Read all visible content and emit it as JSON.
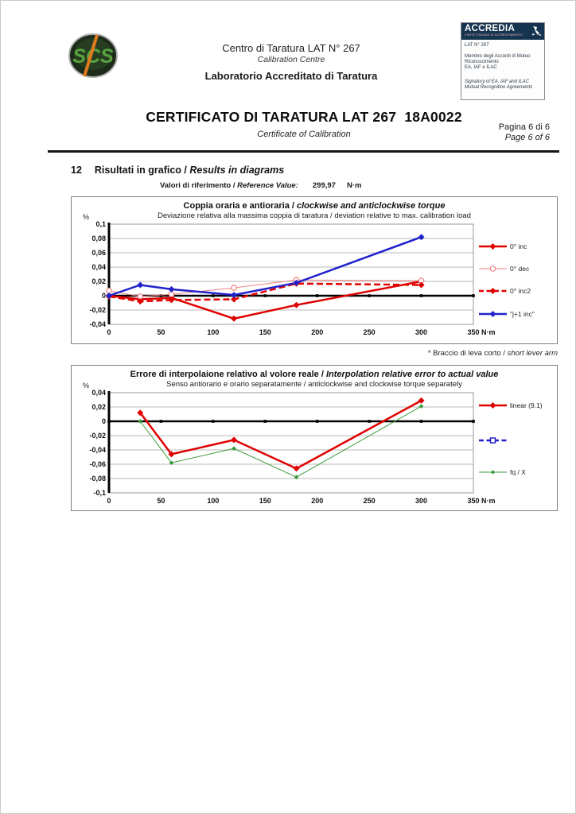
{
  "header": {
    "logo_text": "SCS",
    "center": {
      "line1": "Centro di Taratura LAT N° 267",
      "line2": "Calibration Centre",
      "line3": "Laboratorio Accreditato di Taratura"
    },
    "accredia": {
      "brand": "ACCREDIA",
      "brand_sub": "L'ENTE ITALIANO DI ACCREDITAMENTO",
      "lines": [
        "LAT N° 267",
        "Membro degli Accordi di Mutuo",
        "Riconoscimento",
        "EA, IAF e ILAC",
        "Signatory of EA, IAF and ILAC",
        "Mutual Recognition Agreements"
      ]
    }
  },
  "title_block": {
    "title": "CERTIFICATO DI TARATURA LAT 267  18A0022",
    "subtitle": "Certificate of Calibration",
    "page_it": "Pagina 6 di 6",
    "page_en": "Page 6 of 6"
  },
  "section": {
    "number": "12",
    "heading_it": "Risultati in grafico / ",
    "heading_en": "Results in diagrams",
    "ref_label_it": "Valori di riferimento / ",
    "ref_label_en": "Reference Value:",
    "ref_value": "299,97",
    "ref_unit": "N·m"
  },
  "footnote": {
    "text_it": "* Braccio di leva corto / ",
    "text_en": "short lever arm"
  },
  "colors": {
    "red": "#e00000",
    "pink": "#f08080",
    "blue": "#2121cc",
    "green": "#3a9a3a",
    "grid": "#b8b8b8",
    "axis": "#000000",
    "accredia_navy": "#16344f"
  },
  "chart_data": [
    {
      "type": "line",
      "title": "Coppia oraria e antioraria / clockwise and anticlockwise torque",
      "subtitle": "Deviazione relativa alla massima coppia di taratura / deviation relative to max. calibration load",
      "ylabel": "%",
      "xlabel": "N·m",
      "xlim": [
        0,
        350
      ],
      "ylim": [
        -0.04,
        0.1
      ],
      "xticks": [
        0,
        50,
        100,
        150,
        200,
        250,
        300,
        350
      ],
      "yticks": [
        0.1,
        0.08,
        0.06,
        0.04,
        0.02,
        0,
        -0.02,
        -0.04
      ],
      "grid": "horizontal",
      "legend_position": "right",
      "x": [
        0,
        30,
        60,
        120,
        180,
        300
      ],
      "series": [
        {
          "name": "0° inc",
          "color": "#e00000",
          "style": "solid",
          "width": 2.5,
          "marker": "diamond",
          "values": [
            0,
            -0.005,
            -0.003,
            -0.032,
            -0.013,
            0.02
          ]
        },
        {
          "name": "0° dec",
          "color": "#f08080",
          "style": "solid",
          "width": 1,
          "marker": "circle-open",
          "values": [
            0.007,
            -0.001,
            0.002,
            0.011,
            0.022,
            0.021
          ]
        },
        {
          "name": "0° inc2",
          "color": "#e00000",
          "style": "dashed",
          "width": 2.5,
          "marker": "diamond",
          "values": [
            -0.001,
            -0.008,
            -0.006,
            -0.005,
            0.017,
            0.015
          ]
        },
        {
          "name": "\"j+1 inc\"",
          "color": "#2121cc",
          "style": "solid",
          "width": 2.5,
          "marker": "diamond",
          "values": [
            0,
            0.015,
            0.009,
            0.001,
            0.018,
            0.082
          ]
        }
      ]
    },
    {
      "type": "line",
      "title": "Errore di interpolaione relativo al volore reale / Interpolation relative error to actual value",
      "subtitle": "Senso antiorario e orario separatamente / anticlockwise and clockwise torque separately",
      "ylabel": "%",
      "xlabel": "N·m",
      "xlim": [
        0,
        350
      ],
      "ylim": [
        -0.1,
        0.04
      ],
      "xticks": [
        0,
        50,
        100,
        150,
        200,
        250,
        300,
        350
      ],
      "yticks": [
        0.04,
        0.02,
        0,
        -0.02,
        -0.04,
        -0.06,
        -0.08,
        -0.1
      ],
      "grid": "horizontal",
      "legend_position": "right",
      "x": [
        30,
        60,
        120,
        180,
        300
      ],
      "series": [
        {
          "name": "linear (9.1)",
          "color": "#e00000",
          "style": "solid",
          "width": 2.5,
          "marker": "diamond",
          "values": [
            0.012,
            -0.046,
            -0.026,
            -0.066,
            0.029
          ]
        },
        {
          "name": "",
          "color": "#2121cc",
          "style": "dashed",
          "width": 2.5,
          "marker": "square-open",
          "values": []
        },
        {
          "name": "fq / X",
          "color": "#3a9a3a",
          "style": "solid",
          "width": 1,
          "marker": "diamond-small",
          "values": [
            0,
            -0.058,
            -0.038,
            -0.078,
            0.021
          ]
        }
      ]
    }
  ]
}
